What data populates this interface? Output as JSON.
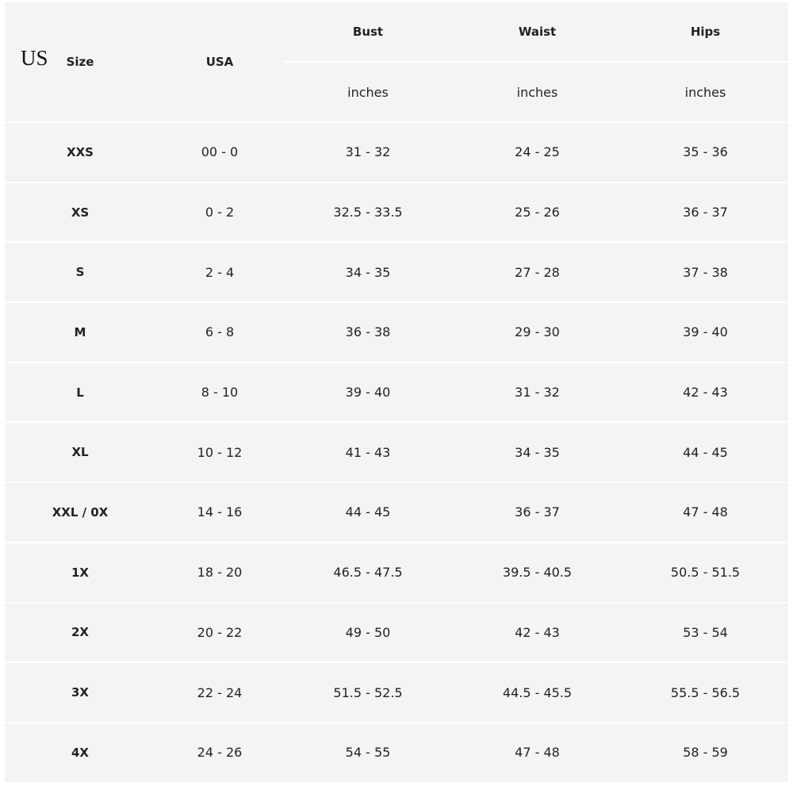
{
  "overlay_label": "US",
  "headers": {
    "size": "Size",
    "usa": "USA",
    "bust": "Bust",
    "waist": "Waist",
    "hips": "Hips",
    "unit": "inches"
  },
  "rows": [
    {
      "size": "XXS",
      "usa": "00 - 0",
      "bust": "31 - 32",
      "waist": "24 - 25",
      "hips": "35 - 36"
    },
    {
      "size": "XS",
      "usa": "0 - 2",
      "bust": "32.5 - 33.5",
      "waist": "25 - 26",
      "hips": "36 - 37"
    },
    {
      "size": "S",
      "usa": "2 - 4",
      "bust": "34 - 35",
      "waist": "27 - 28",
      "hips": "37 - 38"
    },
    {
      "size": "M",
      "usa": "6 - 8",
      "bust": "36 - 38",
      "waist": "29 - 30",
      "hips": "39 - 40"
    },
    {
      "size": "L",
      "usa": "8 - 10",
      "bust": "39 - 40",
      "waist": "31 - 32",
      "hips": "42 - 43"
    },
    {
      "size": "XL",
      "usa": "10 - 12",
      "bust": "41 - 43",
      "waist": "34 - 35",
      "hips": "44 - 45"
    },
    {
      "size": "XXL / 0X",
      "usa": "14 - 16",
      "bust": "44 - 45",
      "waist": "36 - 37",
      "hips": "47 - 48"
    },
    {
      "size": "1X",
      "usa": "18 - 20",
      "bust": "46.5 - 47.5",
      "waist": "39.5 - 40.5",
      "hips": "50.5 - 51.5"
    },
    {
      "size": "2X",
      "usa": "20 - 22",
      "bust": "49 - 50",
      "waist": "42 - 43",
      "hips": "53 - 54"
    },
    {
      "size": "3X",
      "usa": "22 - 24",
      "bust": "51.5 - 52.5",
      "waist": "44.5 - 45.5",
      "hips": "55.5 - 56.5"
    },
    {
      "size": "4X",
      "usa": "24 - 26",
      "bust": "54 - 55",
      "waist": "47 - 48",
      "hips": "58 - 59"
    }
  ]
}
